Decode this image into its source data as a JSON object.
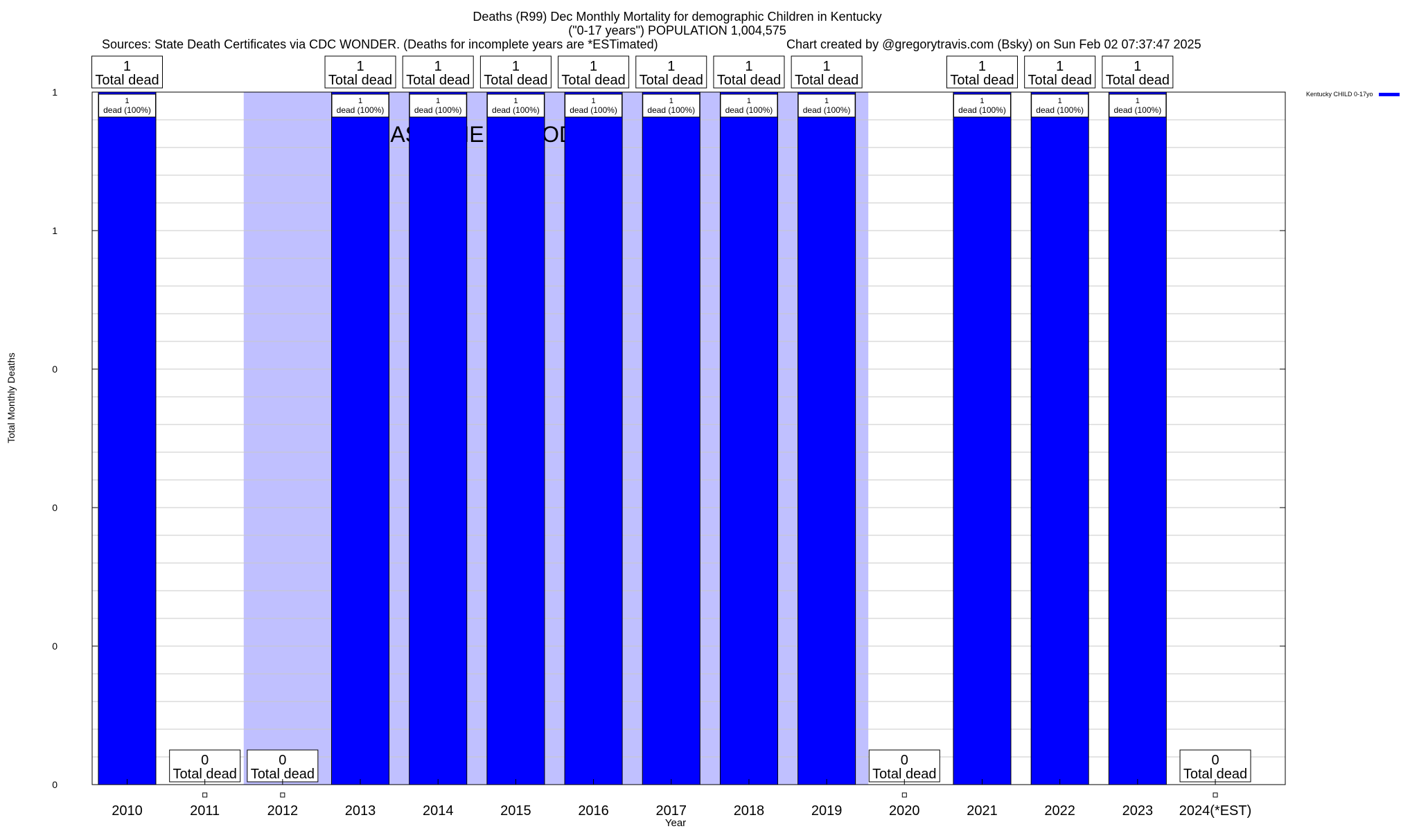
{
  "header": {
    "title_line1": "Deaths (R99) Dec Monthly Mortality for demographic Children in Kentucky",
    "title_line2": "(\"0-17 years\") POPULATION 1,004,575",
    "sources": "Sources: State Death Certificates via CDC WONDER. (Deaths for incomplete years are *ESTimated)",
    "credit": "Chart created by @gregorytravis.com (Bsky) on Sun Feb 02 07:37:47 2025"
  },
  "legend": {
    "label": "Kentucky CHILD 0-17yo",
    "color": "#0000ff"
  },
  "colors": {
    "bar": "#0000ff",
    "baseline": "#c0c0ff",
    "grid": "#c8c8c8"
  },
  "chart_data": {
    "type": "bar",
    "title": "Deaths (R99) Dec Monthly Mortality for demographic Children in Kentucky",
    "subtitle": "(\"0-17 years\") POPULATION 1,004,575",
    "xlabel": "Year",
    "ylabel": "Total Monthly Deaths",
    "ylim": [
      0,
      1
    ],
    "yticks": [
      0,
      0.2,
      0.4,
      0.6,
      0.8,
      1
    ],
    "ytick_labels": [
      "0",
      "0",
      "0",
      "0",
      "1",
      "1"
    ],
    "minor_gridlines_per_interval": 5,
    "categories": [
      "2010",
      "2011",
      "2012",
      "2013",
      "2014",
      "2015",
      "2016",
      "2017",
      "2018",
      "2019",
      "2020",
      "2021",
      "2022",
      "2023",
      "2024(*EST)"
    ],
    "values": [
      1,
      0,
      0,
      1,
      1,
      1,
      1,
      1,
      1,
      1,
      0,
      1,
      1,
      1,
      0
    ],
    "top_labels": [
      {
        "count": "1",
        "text": "Total dead"
      },
      {
        "count": "0",
        "text": "Total dead"
      },
      {
        "count": "0",
        "text": "Total dead"
      },
      {
        "count": "1",
        "text": "Total dead"
      },
      {
        "count": "1",
        "text": "Total dead"
      },
      {
        "count": "1",
        "text": "Total dead"
      },
      {
        "count": "1",
        "text": "Total dead"
      },
      {
        "count": "1",
        "text": "Total dead"
      },
      {
        "count": "1",
        "text": "Total dead"
      },
      {
        "count": "1",
        "text": "Total dead"
      },
      {
        "count": "0",
        "text": "Total dead"
      },
      {
        "count": "1",
        "text": "Total dead"
      },
      {
        "count": "1",
        "text": "Total dead"
      },
      {
        "count": "1",
        "text": "Total dead"
      },
      {
        "count": "0",
        "text": "Total dead"
      }
    ],
    "bar_labels": [
      {
        "count": "1",
        "text": "dead (100%)"
      },
      null,
      null,
      {
        "count": "1",
        "text": "dead (100%)"
      },
      {
        "count": "1",
        "text": "dead (100%)"
      },
      {
        "count": "1",
        "text": "dead (100%)"
      },
      {
        "count": "1",
        "text": "dead (100%)"
      },
      {
        "count": "1",
        "text": "dead (100%)"
      },
      {
        "count": "1",
        "text": "dead (100%)"
      },
      {
        "count": "1",
        "text": "dead (100%)"
      },
      null,
      {
        "count": "1",
        "text": "dead (100%)"
      },
      {
        "count": "1",
        "text": "dead (100%)"
      },
      {
        "count": "1",
        "text": "dead (100%)"
      },
      null
    ],
    "baseline_period": {
      "label": "BASELINE PERIOD",
      "from": "2012",
      "to": "2019"
    },
    "legend": "Kentucky CHILD 0-17yo"
  }
}
